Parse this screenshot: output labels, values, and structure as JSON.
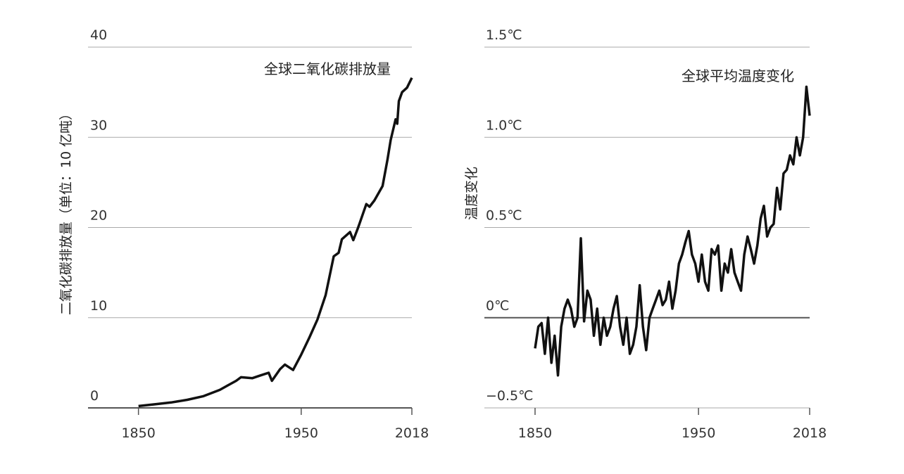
{
  "chart_data": [
    {
      "type": "line",
      "annotation": "全球二氧化碳排放量",
      "y_label": "二氧化碳排放量（单位：10 亿吨）",
      "xlim": [
        1819,
        2018
      ],
      "xticks": [
        1850,
        1950,
        2018
      ],
      "ylim": [
        0,
        40
      ],
      "yticks": [
        0,
        10,
        20,
        30,
        40
      ],
      "grid": true,
      "color": "#111111",
      "x": [
        1850,
        1860,
        1870,
        1880,
        1890,
        1900,
        1905,
        1910,
        1913,
        1920,
        1925,
        1930,
        1932,
        1937,
        1940,
        1945,
        1950,
        1955,
        1960,
        1965,
        1970,
        1973,
        1975,
        1980,
        1982,
        1985,
        1990,
        1992,
        1995,
        2000,
        2003,
        2005,
        2008,
        2009,
        2010,
        2012,
        2015,
        2018
      ],
      "values": [
        0.2,
        0.4,
        0.6,
        0.9,
        1.3,
        2.0,
        2.5,
        3.0,
        3.4,
        3.3,
        3.6,
        3.9,
        3.0,
        4.3,
        4.8,
        4.2,
        5.9,
        7.8,
        9.8,
        12.5,
        16.8,
        17.2,
        18.7,
        19.5,
        18.6,
        20.0,
        22.6,
        22.3,
        23.0,
        24.6,
        27.5,
        29.7,
        32.0,
        31.5,
        34.0,
        35.0,
        35.5,
        36.6
      ]
    },
    {
      "type": "line",
      "annotation": "全球平均温度变化",
      "y_label": "温度变化",
      "xlim": [
        1819,
        2018
      ],
      "xticks": [
        1850,
        1950,
        2018
      ],
      "ylim": [
        -0.5,
        1.5
      ],
      "yticks": [
        {
          "value": -0.5,
          "label": "−0.5℃"
        },
        {
          "value": 0,
          "label": "0℃"
        },
        {
          "value": 0.5,
          "label": "0.5℃"
        },
        {
          "value": 1.0,
          "label": "1.0℃"
        },
        {
          "value": 1.5,
          "label": "1.5℃"
        }
      ],
      "grid": true,
      "color": "#111111",
      "x": [
        1850,
        1852,
        1854,
        1856,
        1858,
        1860,
        1862,
        1864,
        1866,
        1868,
        1870,
        1872,
        1874,
        1876,
        1878,
        1880,
        1882,
        1884,
        1886,
        1888,
        1890,
        1892,
        1894,
        1896,
        1898,
        1900,
        1902,
        1904,
        1906,
        1908,
        1910,
        1912,
        1914,
        1916,
        1918,
        1920,
        1922,
        1924,
        1926,
        1928,
        1930,
        1932,
        1934,
        1936,
        1938,
        1940,
        1942,
        1944,
        1946,
        1948,
        1950,
        1952,
        1954,
        1956,
        1958,
        1960,
        1962,
        1964,
        1966,
        1968,
        1970,
        1972,
        1974,
        1976,
        1978,
        1980,
        1982,
        1984,
        1986,
        1988,
        1990,
        1992,
        1994,
        1996,
        1998,
        2000,
        2002,
        2004,
        2006,
        2008,
        2010,
        2012,
        2014,
        2016,
        2018
      ],
      "values": [
        -0.17,
        -0.05,
        -0.03,
        -0.2,
        0.0,
        -0.25,
        -0.1,
        -0.32,
        -0.05,
        0.05,
        0.1,
        0.05,
        -0.05,
        0.0,
        0.44,
        -0.02,
        0.15,
        0.1,
        -0.1,
        0.05,
        -0.15,
        0.0,
        -0.1,
        -0.05,
        0.05,
        0.12,
        -0.05,
        -0.15,
        0.0,
        -0.2,
        -0.15,
        -0.05,
        0.18,
        -0.05,
        -0.18,
        0.0,
        0.05,
        0.1,
        0.15,
        0.07,
        0.1,
        0.2,
        0.05,
        0.15,
        0.3,
        0.35,
        0.42,
        0.48,
        0.35,
        0.3,
        0.2,
        0.35,
        0.2,
        0.15,
        0.38,
        0.35,
        0.4,
        0.15,
        0.3,
        0.25,
        0.38,
        0.25,
        0.2,
        0.15,
        0.35,
        0.45,
        0.38,
        0.3,
        0.4,
        0.55,
        0.62,
        0.45,
        0.5,
        0.52,
        0.72,
        0.6,
        0.8,
        0.82,
        0.9,
        0.85,
        1.0,
        0.9,
        1.0,
        1.28,
        1.12
      ]
    }
  ]
}
